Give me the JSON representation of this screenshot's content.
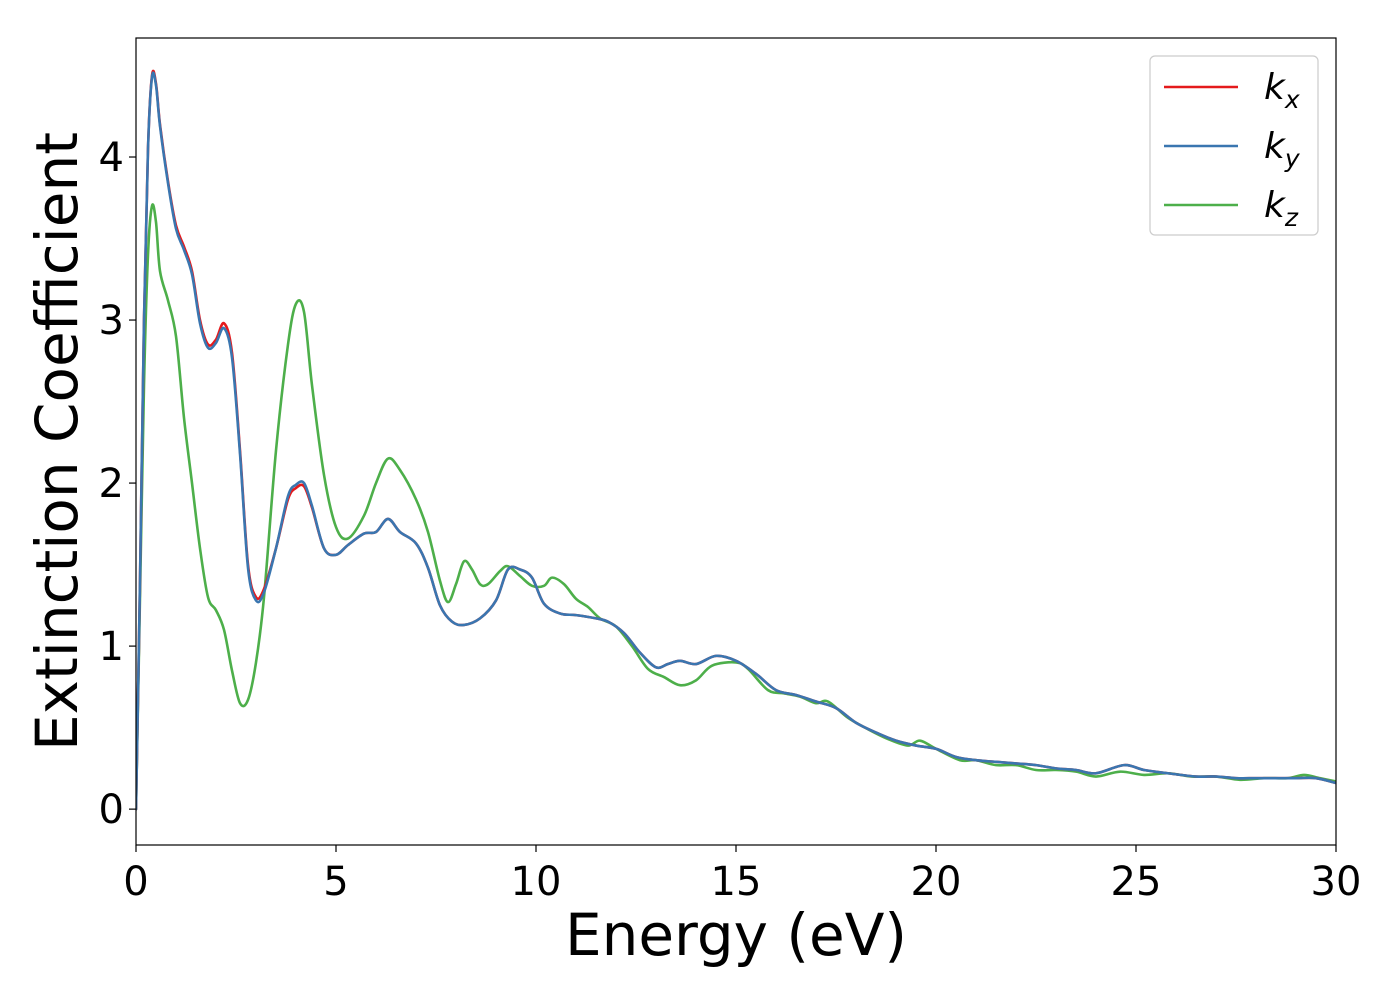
{
  "chart_data": {
    "type": "line",
    "title": "",
    "xlabel": "Energy (eV)",
    "ylabel": "Extinction Coefficient",
    "xlim": [
      0,
      30
    ],
    "ylim": [
      -0.22,
      4.73
    ],
    "xticks": [
      0,
      5,
      10,
      15,
      20,
      25,
      30
    ],
    "yticks": [
      0,
      1,
      2,
      3,
      4
    ],
    "grid": false,
    "legend_position": "top-right",
    "series": [
      {
        "name": "k",
        "subscript": "x",
        "color": "#e41a1c",
        "points": [
          [
            0,
            0
          ],
          [
            0.1,
            1.4
          ],
          [
            0.2,
            3.0
          ],
          [
            0.3,
            4.05
          ],
          [
            0.4,
            4.5
          ],
          [
            0.5,
            4.45
          ],
          [
            0.6,
            4.2
          ],
          [
            0.8,
            3.85
          ],
          [
            1.0,
            3.58
          ],
          [
            1.2,
            3.45
          ],
          [
            1.4,
            3.3
          ],
          [
            1.6,
            3.0
          ],
          [
            1.8,
            2.85
          ],
          [
            2.0,
            2.88
          ],
          [
            2.2,
            2.98
          ],
          [
            2.4,
            2.8
          ],
          [
            2.6,
            2.2
          ],
          [
            2.8,
            1.5
          ],
          [
            3.0,
            1.3
          ],
          [
            3.2,
            1.35
          ],
          [
            3.5,
            1.6
          ],
          [
            3.8,
            1.9
          ],
          [
            4.0,
            1.97
          ],
          [
            4.2,
            1.98
          ],
          [
            4.4,
            1.85
          ],
          [
            4.7,
            1.6
          ],
          [
            5.0,
            1.56
          ],
          [
            5.3,
            1.62
          ],
          [
            5.7,
            1.69
          ],
          [
            6.0,
            1.7
          ],
          [
            6.3,
            1.78
          ],
          [
            6.6,
            1.7
          ],
          [
            7.0,
            1.63
          ],
          [
            7.3,
            1.48
          ],
          [
            7.6,
            1.25
          ],
          [
            7.9,
            1.15
          ],
          [
            8.2,
            1.13
          ],
          [
            8.6,
            1.17
          ],
          [
            9.0,
            1.28
          ],
          [
            9.3,
            1.47
          ],
          [
            9.6,
            1.47
          ],
          [
            9.9,
            1.42
          ],
          [
            10.2,
            1.26
          ],
          [
            10.6,
            1.2
          ],
          [
            11.0,
            1.19
          ],
          [
            11.5,
            1.17
          ],
          [
            11.8,
            1.15
          ],
          [
            12.2,
            1.08
          ],
          [
            12.6,
            0.96
          ],
          [
            13.0,
            0.87
          ],
          [
            13.3,
            0.89
          ],
          [
            13.6,
            0.91
          ],
          [
            14.0,
            0.89
          ],
          [
            14.5,
            0.94
          ],
          [
            15.0,
            0.91
          ],
          [
            15.5,
            0.83
          ],
          [
            16.0,
            0.73
          ],
          [
            16.5,
            0.7
          ],
          [
            17.0,
            0.66
          ],
          [
            17.5,
            0.62
          ],
          [
            18.0,
            0.53
          ],
          [
            18.5,
            0.47
          ],
          [
            19.0,
            0.42
          ],
          [
            19.5,
            0.39
          ],
          [
            20.0,
            0.37
          ],
          [
            20.5,
            0.32
          ],
          [
            21.0,
            0.3
          ],
          [
            21.5,
            0.29
          ],
          [
            22.0,
            0.28
          ],
          [
            22.5,
            0.27
          ],
          [
            23.0,
            0.25
          ],
          [
            23.5,
            0.24
          ],
          [
            24.0,
            0.22
          ],
          [
            24.7,
            0.27
          ],
          [
            25.2,
            0.24
          ],
          [
            25.8,
            0.22
          ],
          [
            26.5,
            0.2
          ],
          [
            27.0,
            0.2
          ],
          [
            27.5,
            0.19
          ],
          [
            28.0,
            0.19
          ],
          [
            28.5,
            0.19
          ],
          [
            29.0,
            0.19
          ],
          [
            29.5,
            0.19
          ],
          [
            30.0,
            0.16
          ]
        ]
      },
      {
        "name": "k",
        "subscript": "y",
        "color": "#3a76b0",
        "points": [
          [
            0,
            0
          ],
          [
            0.1,
            1.4
          ],
          [
            0.2,
            3.0
          ],
          [
            0.3,
            4.05
          ],
          [
            0.4,
            4.49
          ],
          [
            0.5,
            4.44
          ],
          [
            0.6,
            4.19
          ],
          [
            0.8,
            3.84
          ],
          [
            1.0,
            3.56
          ],
          [
            1.2,
            3.43
          ],
          [
            1.4,
            3.28
          ],
          [
            1.6,
            2.98
          ],
          [
            1.8,
            2.83
          ],
          [
            2.0,
            2.86
          ],
          [
            2.2,
            2.95
          ],
          [
            2.4,
            2.77
          ],
          [
            2.6,
            2.18
          ],
          [
            2.8,
            1.48
          ],
          [
            3.0,
            1.28
          ],
          [
            3.2,
            1.33
          ],
          [
            3.5,
            1.6
          ],
          [
            3.8,
            1.92
          ],
          [
            4.0,
            1.99
          ],
          [
            4.2,
            2.0
          ],
          [
            4.4,
            1.86
          ],
          [
            4.7,
            1.6
          ],
          [
            5.0,
            1.56
          ],
          [
            5.3,
            1.62
          ],
          [
            5.7,
            1.69
          ],
          [
            6.0,
            1.7
          ],
          [
            6.3,
            1.78
          ],
          [
            6.6,
            1.7
          ],
          [
            7.0,
            1.63
          ],
          [
            7.3,
            1.48
          ],
          [
            7.6,
            1.25
          ],
          [
            7.9,
            1.15
          ],
          [
            8.2,
            1.13
          ],
          [
            8.6,
            1.17
          ],
          [
            9.0,
            1.28
          ],
          [
            9.3,
            1.47
          ],
          [
            9.6,
            1.47
          ],
          [
            9.9,
            1.42
          ],
          [
            10.2,
            1.26
          ],
          [
            10.6,
            1.2
          ],
          [
            11.0,
            1.19
          ],
          [
            11.5,
            1.17
          ],
          [
            11.8,
            1.15
          ],
          [
            12.2,
            1.08
          ],
          [
            12.6,
            0.96
          ],
          [
            13.0,
            0.87
          ],
          [
            13.3,
            0.89
          ],
          [
            13.6,
            0.91
          ],
          [
            14.0,
            0.89
          ],
          [
            14.5,
            0.94
          ],
          [
            15.0,
            0.91
          ],
          [
            15.5,
            0.83
          ],
          [
            16.0,
            0.73
          ],
          [
            16.5,
            0.7
          ],
          [
            17.0,
            0.66
          ],
          [
            17.5,
            0.62
          ],
          [
            18.0,
            0.53
          ],
          [
            18.5,
            0.47
          ],
          [
            19.0,
            0.42
          ],
          [
            19.5,
            0.39
          ],
          [
            20.0,
            0.37
          ],
          [
            20.5,
            0.32
          ],
          [
            21.0,
            0.3
          ],
          [
            21.5,
            0.29
          ],
          [
            22.0,
            0.28
          ],
          [
            22.5,
            0.27
          ],
          [
            23.0,
            0.25
          ],
          [
            23.5,
            0.24
          ],
          [
            24.0,
            0.22
          ],
          [
            24.7,
            0.27
          ],
          [
            25.2,
            0.24
          ],
          [
            25.8,
            0.22
          ],
          [
            26.5,
            0.2
          ],
          [
            27.0,
            0.2
          ],
          [
            27.5,
            0.19
          ],
          [
            28.0,
            0.19
          ],
          [
            28.5,
            0.19
          ],
          [
            29.0,
            0.19
          ],
          [
            29.5,
            0.19
          ],
          [
            30.0,
            0.16
          ]
        ]
      },
      {
        "name": "k",
        "subscript": "z",
        "color": "#4daf4a",
        "points": [
          [
            0,
            0
          ],
          [
            0.1,
            1.3
          ],
          [
            0.2,
            2.6
          ],
          [
            0.3,
            3.4
          ],
          [
            0.4,
            3.7
          ],
          [
            0.5,
            3.6
          ],
          [
            0.6,
            3.3
          ],
          [
            0.8,
            3.12
          ],
          [
            1.0,
            2.9
          ],
          [
            1.2,
            2.4
          ],
          [
            1.4,
            2.0
          ],
          [
            1.6,
            1.6
          ],
          [
            1.8,
            1.3
          ],
          [
            2.0,
            1.22
          ],
          [
            2.2,
            1.1
          ],
          [
            2.4,
            0.85
          ],
          [
            2.6,
            0.65
          ],
          [
            2.8,
            0.67
          ],
          [
            3.0,
            0.9
          ],
          [
            3.2,
            1.3
          ],
          [
            3.5,
            2.2
          ],
          [
            3.8,
            2.85
          ],
          [
            4.0,
            3.1
          ],
          [
            4.2,
            3.05
          ],
          [
            4.4,
            2.6
          ],
          [
            4.7,
            2.05
          ],
          [
            5.0,
            1.73
          ],
          [
            5.3,
            1.66
          ],
          [
            5.7,
            1.8
          ],
          [
            6.0,
            2.0
          ],
          [
            6.3,
            2.15
          ],
          [
            6.6,
            2.08
          ],
          [
            7.0,
            1.9
          ],
          [
            7.3,
            1.7
          ],
          [
            7.6,
            1.4
          ],
          [
            7.8,
            1.27
          ],
          [
            8.0,
            1.38
          ],
          [
            8.2,
            1.52
          ],
          [
            8.4,
            1.47
          ],
          [
            8.6,
            1.38
          ],
          [
            8.8,
            1.38
          ],
          [
            9.1,
            1.46
          ],
          [
            9.3,
            1.49
          ],
          [
            9.6,
            1.43
          ],
          [
            9.9,
            1.37
          ],
          [
            10.2,
            1.37
          ],
          [
            10.4,
            1.42
          ],
          [
            10.7,
            1.38
          ],
          [
            11.0,
            1.29
          ],
          [
            11.3,
            1.24
          ],
          [
            11.6,
            1.17
          ],
          [
            12.0,
            1.12
          ],
          [
            12.4,
            1.0
          ],
          [
            12.8,
            0.86
          ],
          [
            13.2,
            0.81
          ],
          [
            13.6,
            0.76
          ],
          [
            14.0,
            0.79
          ],
          [
            14.4,
            0.88
          ],
          [
            15.0,
            0.9
          ],
          [
            15.3,
            0.86
          ],
          [
            15.8,
            0.73
          ],
          [
            16.2,
            0.71
          ],
          [
            16.6,
            0.69
          ],
          [
            17.0,
            0.65
          ],
          [
            17.3,
            0.66
          ],
          [
            17.8,
            0.56
          ],
          [
            18.3,
            0.49
          ],
          [
            18.8,
            0.43
          ],
          [
            19.3,
            0.39
          ],
          [
            19.6,
            0.42
          ],
          [
            20.0,
            0.37
          ],
          [
            20.6,
            0.3
          ],
          [
            21.0,
            0.3
          ],
          [
            21.5,
            0.27
          ],
          [
            22.0,
            0.27
          ],
          [
            22.5,
            0.24
          ],
          [
            23.0,
            0.24
          ],
          [
            23.5,
            0.23
          ],
          [
            24.0,
            0.2
          ],
          [
            24.6,
            0.23
          ],
          [
            25.2,
            0.21
          ],
          [
            25.8,
            0.22
          ],
          [
            26.4,
            0.2
          ],
          [
            27.0,
            0.2
          ],
          [
            27.6,
            0.18
          ],
          [
            28.2,
            0.19
          ],
          [
            28.8,
            0.19
          ],
          [
            29.2,
            0.21
          ],
          [
            29.6,
            0.19
          ],
          [
            30.0,
            0.17
          ]
        ]
      }
    ]
  }
}
